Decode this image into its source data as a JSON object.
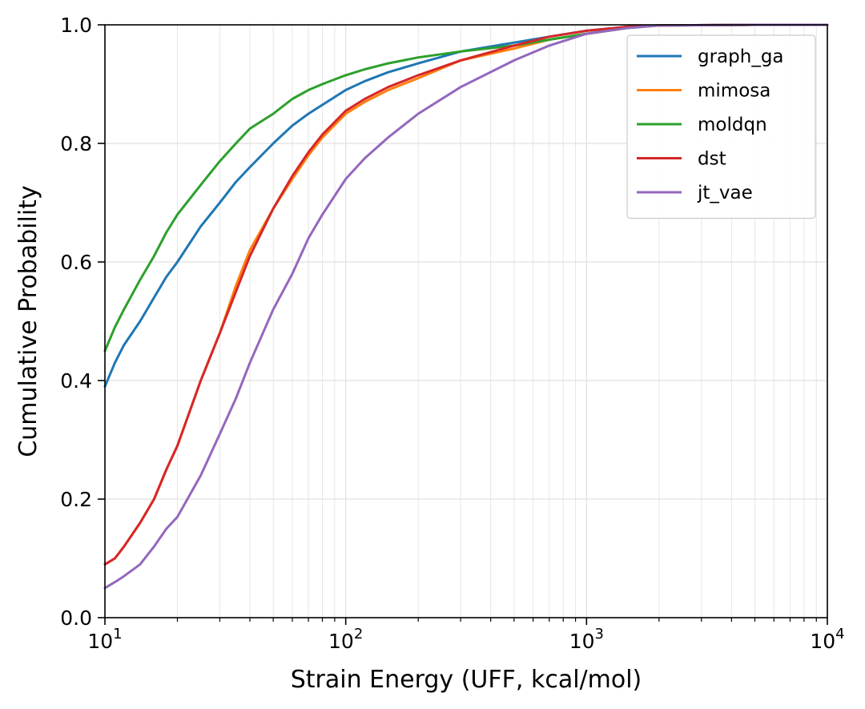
{
  "chart_data": {
    "type": "line",
    "title": "",
    "xlabel": "Strain Energy (UFF, kcal/mol)",
    "ylabel": "Cumulative Probability",
    "xscale": "log",
    "xlim": [
      10,
      10000
    ],
    "ylim": [
      0,
      1
    ],
    "grid": true,
    "legend_position": "top-right",
    "x_ticks": [
      {
        "value": 10,
        "base": "10",
        "exp": "1"
      },
      {
        "value": 100,
        "base": "10",
        "exp": "2"
      },
      {
        "value": 1000,
        "base": "10",
        "exp": "3"
      },
      {
        "value": 10000,
        "base": "10",
        "exp": "4"
      }
    ],
    "y_ticks": [
      {
        "value": 0.0,
        "label": "0.0"
      },
      {
        "value": 0.2,
        "label": "0.2"
      },
      {
        "value": 0.4,
        "label": "0.4"
      },
      {
        "value": 0.6,
        "label": "0.6"
      },
      {
        "value": 0.8,
        "label": "0.8"
      },
      {
        "value": 1.0,
        "label": "1.0"
      }
    ],
    "series": [
      {
        "name": "graph_ga",
        "color": "#1f77b4",
        "points": [
          [
            10,
            0.39
          ],
          [
            11,
            0.43
          ],
          [
            12,
            0.46
          ],
          [
            14,
            0.5
          ],
          [
            16,
            0.54
          ],
          [
            18,
            0.575
          ],
          [
            20,
            0.6
          ],
          [
            25,
            0.66
          ],
          [
            30,
            0.7
          ],
          [
            35,
            0.735
          ],
          [
            40,
            0.76
          ],
          [
            50,
            0.8
          ],
          [
            60,
            0.83
          ],
          [
            70,
            0.85
          ],
          [
            80,
            0.865
          ],
          [
            100,
            0.89
          ],
          [
            120,
            0.905
          ],
          [
            150,
            0.92
          ],
          [
            200,
            0.935
          ],
          [
            300,
            0.955
          ],
          [
            500,
            0.97
          ],
          [
            700,
            0.98
          ],
          [
            1000,
            0.99
          ],
          [
            1500,
            0.997
          ],
          [
            2000,
            0.999
          ],
          [
            5000,
            1.0
          ],
          [
            10000,
            1.0
          ]
        ]
      },
      {
        "name": "mimosa",
        "color": "#ff7f0e",
        "points": [
          [
            10,
            0.09
          ],
          [
            11,
            0.1
          ],
          [
            12,
            0.12
          ],
          [
            14,
            0.16
          ],
          [
            16,
            0.2
          ],
          [
            18,
            0.25
          ],
          [
            20,
            0.29
          ],
          [
            25,
            0.4
          ],
          [
            30,
            0.48
          ],
          [
            35,
            0.56
          ],
          [
            40,
            0.62
          ],
          [
            50,
            0.69
          ],
          [
            60,
            0.74
          ],
          [
            70,
            0.78
          ],
          [
            80,
            0.81
          ],
          [
            100,
            0.85
          ],
          [
            120,
            0.87
          ],
          [
            150,
            0.89
          ],
          [
            200,
            0.91
          ],
          [
            300,
            0.94
          ],
          [
            500,
            0.96
          ],
          [
            700,
            0.975
          ],
          [
            1000,
            0.985
          ],
          [
            1500,
            0.995
          ],
          [
            2000,
            0.999
          ],
          [
            5000,
            1.0
          ],
          [
            10000,
            1.0
          ]
        ]
      },
      {
        "name": "moldqn",
        "color": "#2ca02c",
        "points": [
          [
            10,
            0.45
          ],
          [
            11,
            0.49
          ],
          [
            12,
            0.52
          ],
          [
            14,
            0.57
          ],
          [
            16,
            0.61
          ],
          [
            18,
            0.65
          ],
          [
            20,
            0.68
          ],
          [
            25,
            0.73
          ],
          [
            30,
            0.77
          ],
          [
            35,
            0.8
          ],
          [
            40,
            0.825
          ],
          [
            50,
            0.85
          ],
          [
            60,
            0.875
          ],
          [
            70,
            0.89
          ],
          [
            80,
            0.9
          ],
          [
            100,
            0.915
          ],
          [
            120,
            0.925
          ],
          [
            150,
            0.935
          ],
          [
            200,
            0.945
          ],
          [
            300,
            0.955
          ],
          [
            500,
            0.965
          ],
          [
            700,
            0.975
          ],
          [
            1000,
            0.985
          ],
          [
            1500,
            0.995
          ],
          [
            2000,
            0.999
          ],
          [
            5000,
            1.0
          ],
          [
            10000,
            1.0
          ]
        ]
      },
      {
        "name": "dst",
        "color": "#d62728",
        "points": [
          [
            10,
            0.09
          ],
          [
            11,
            0.1
          ],
          [
            12,
            0.12
          ],
          [
            14,
            0.16
          ],
          [
            16,
            0.2
          ],
          [
            18,
            0.25
          ],
          [
            20,
            0.29
          ],
          [
            25,
            0.4
          ],
          [
            30,
            0.48
          ],
          [
            35,
            0.55
          ],
          [
            40,
            0.61
          ],
          [
            50,
            0.69
          ],
          [
            60,
            0.745
          ],
          [
            70,
            0.785
          ],
          [
            80,
            0.815
          ],
          [
            100,
            0.855
          ],
          [
            120,
            0.875
          ],
          [
            150,
            0.895
          ],
          [
            200,
            0.915
          ],
          [
            300,
            0.94
          ],
          [
            500,
            0.965
          ],
          [
            700,
            0.98
          ],
          [
            1000,
            0.99
          ],
          [
            1500,
            0.997
          ],
          [
            2000,
            0.999
          ],
          [
            5000,
            1.0
          ],
          [
            10000,
            1.0
          ]
        ]
      },
      {
        "name": "jt_vae",
        "color": "#9467bd",
        "points": [
          [
            10,
            0.05
          ],
          [
            11,
            0.06
          ],
          [
            12,
            0.07
          ],
          [
            14,
            0.09
          ],
          [
            16,
            0.12
          ],
          [
            18,
            0.15
          ],
          [
            20,
            0.17
          ],
          [
            25,
            0.24
          ],
          [
            30,
            0.31
          ],
          [
            35,
            0.37
          ],
          [
            40,
            0.43
          ],
          [
            50,
            0.52
          ],
          [
            60,
            0.58
          ],
          [
            70,
            0.64
          ],
          [
            80,
            0.68
          ],
          [
            100,
            0.74
          ],
          [
            120,
            0.775
          ],
          [
            150,
            0.81
          ],
          [
            200,
            0.85
          ],
          [
            300,
            0.895
          ],
          [
            500,
            0.94
          ],
          [
            700,
            0.965
          ],
          [
            1000,
            0.985
          ],
          [
            1500,
            0.995
          ],
          [
            2000,
            0.999
          ],
          [
            5000,
            1.0
          ],
          [
            10000,
            1.0
          ]
        ]
      }
    ]
  }
}
